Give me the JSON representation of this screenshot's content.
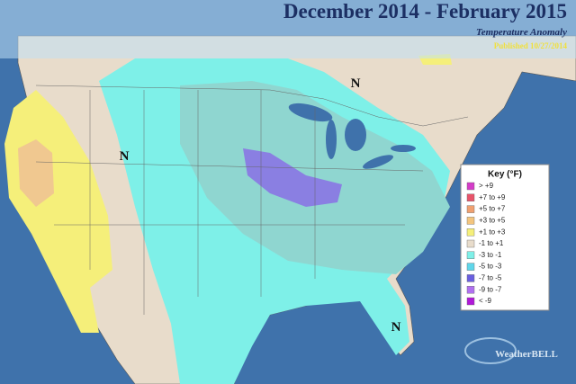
{
  "header": {
    "title": "December 2014 - February 2015",
    "subtitle": "Temperature Anomaly",
    "published": "Published 10/27/2014"
  },
  "map_labels": [
    "N",
    "N",
    "N"
  ],
  "key": {
    "title": "Key (°F)",
    "entries": [
      {
        "label": "> +9",
        "color": "#d43cc8"
      },
      {
        "label": "+7 to +9",
        "color": "#e8546a"
      },
      {
        "label": "+5 to +7",
        "color": "#f0a070"
      },
      {
        "label": "+3 to +5",
        "color": "#f3c57e"
      },
      {
        "label": "+1 to +3",
        "color": "#f5ef7a"
      },
      {
        "label": "-1 to +1",
        "color": "#e8dccb"
      },
      {
        "label": "-3 to -1",
        "color": "#7ef0e8"
      },
      {
        "label": "-5 to -3",
        "color": "#5fd6ea"
      },
      {
        "label": "-7 to -5",
        "color": "#6a5fe0"
      },
      {
        "label": "-9 to -7",
        "color": "#b070f0"
      },
      {
        "label": "< -9",
        "color": "#b018d8"
      }
    ]
  },
  "logo": "WeatherBELL"
}
